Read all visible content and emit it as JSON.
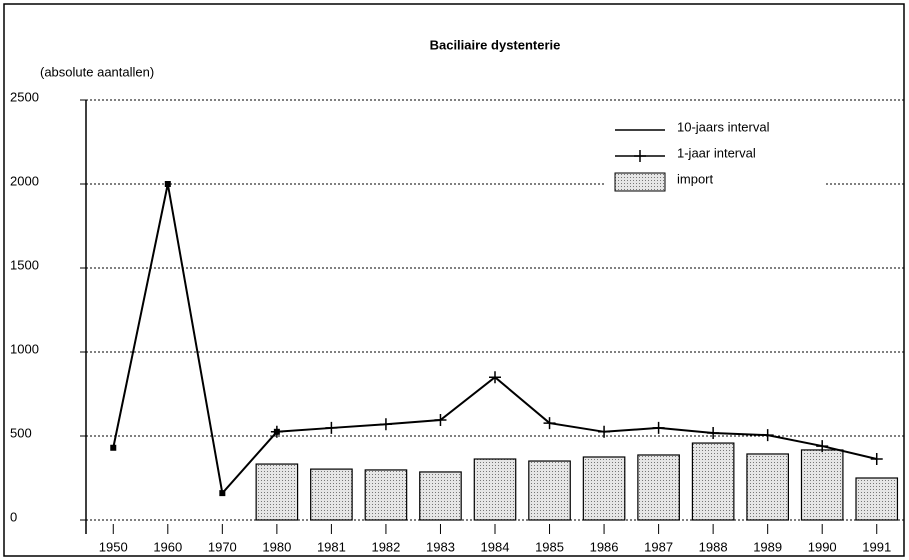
{
  "chart_data": {
    "type": "combo",
    "title": "Baciliaire dystenterie",
    "y_label": "(absolute aantallen)",
    "categories": [
      "1950",
      "1960",
      "1970",
      "1980",
      "1981",
      "1982",
      "1983",
      "1984",
      "1985",
      "1986",
      "1987",
      "1988",
      "1989",
      "1990",
      "1991"
    ],
    "series": [
      {
        "name": "10-jaars interval",
        "type": "line",
        "color": "#000000",
        "values": [
          430,
          2000,
          160,
          525,
          null,
          null,
          null,
          null,
          null,
          null,
          null,
          null,
          null,
          null,
          null
        ]
      },
      {
        "name": "1-jaar interval",
        "type": "line",
        "marker": "+",
        "color": "#000000",
        "values": [
          null,
          null,
          null,
          525,
          548,
          570,
          595,
          850,
          577,
          525,
          548,
          518,
          505,
          440,
          363
        ]
      },
      {
        "name": "import",
        "type": "bar",
        "color": "#c8c8c8",
        "values": [
          null,
          null,
          null,
          333,
          303,
          298,
          286,
          363,
          351,
          375,
          387,
          458,
          393,
          417,
          250
        ]
      }
    ],
    "ylim": [
      0,
      2500
    ],
    "yticks": [
      0,
      500,
      1000,
      1500,
      2000,
      2500
    ],
    "grid": true,
    "legend": "upper right"
  }
}
